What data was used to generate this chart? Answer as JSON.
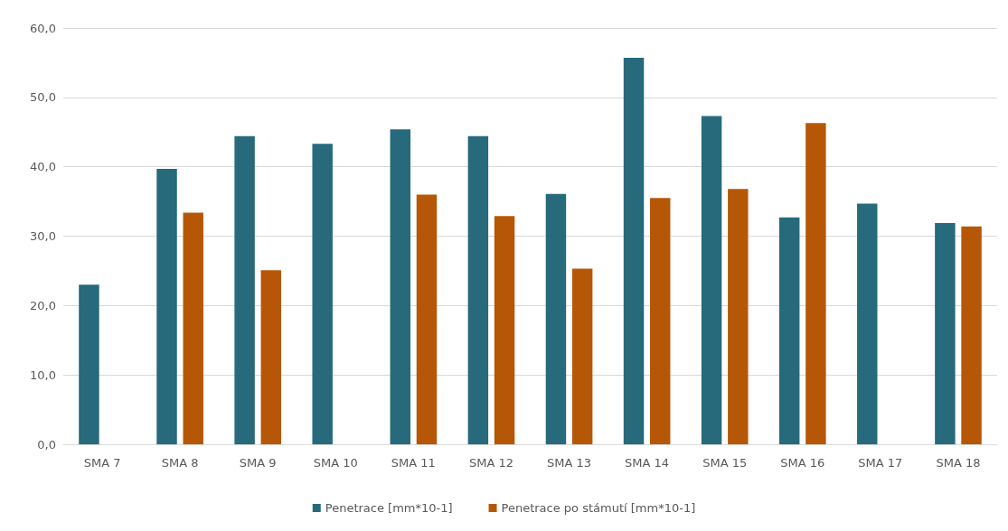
{
  "chart_data": {
    "type": "bar",
    "categories": [
      "SMA 7",
      "SMA 8",
      "SMA 9",
      "SMA 10",
      "SMA 11",
      "SMA 12",
      "SMA 13",
      "SMA 14",
      "SMA 15",
      "SMA 16",
      "SMA 17",
      "SMA 18"
    ],
    "series": [
      {
        "name": "Penetrace [mm*10-1]",
        "color": "#266a7b",
        "values": [
          23.0,
          39.7,
          44.4,
          43.3,
          45.4,
          44.4,
          36.1,
          55.7,
          47.3,
          32.7,
          34.7,
          31.9
        ]
      },
      {
        "name": "Penetrace po stámutí [mm*10-1]",
        "color": "#b65708",
        "values": [
          null,
          33.4,
          25.1,
          null,
          36.0,
          32.9,
          25.3,
          35.5,
          36.8,
          46.3,
          null,
          31.4
        ]
      }
    ],
    "ylim": [
      0,
      60
    ],
    "yticks": [
      {
        "value": 0,
        "label": "0,0"
      },
      {
        "value": 10,
        "label": "10,0"
      },
      {
        "value": 20,
        "label": "20,0"
      },
      {
        "value": 30,
        "label": "30,0"
      },
      {
        "value": 40,
        "label": "40,0"
      },
      {
        "value": 50,
        "label": "50,0"
      },
      {
        "value": 60,
        "label": "60,0"
      }
    ],
    "grid": "y",
    "legend": "bottom"
  }
}
